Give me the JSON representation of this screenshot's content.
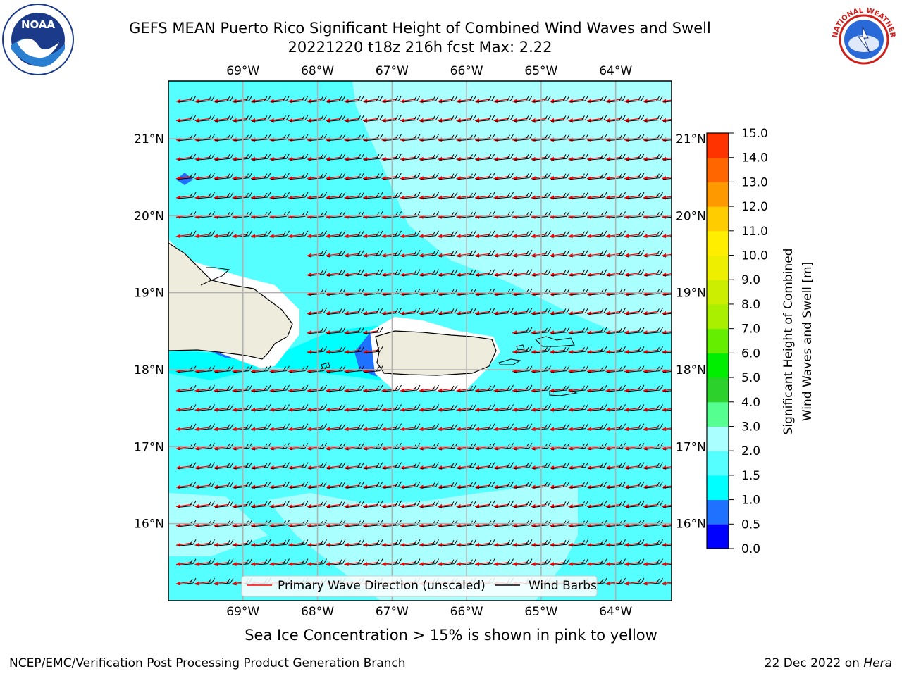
{
  "header": {
    "title_line1": "GEFS MEAN Puerto Rico Significant Height of Combined Wind Waves and Swell",
    "title_line2": "20221220 t18z 216h fcst   Max: 2.22"
  },
  "logos": {
    "left": "NOAA",
    "right": "NATIONAL WEATHER SERVICE"
  },
  "map": {
    "region": "Puerto Rico",
    "lon_labels": [
      "69°W",
      "68°W",
      "67°W",
      "66°W",
      "65°W",
      "64°W"
    ],
    "lat_labels": [
      "21°N",
      "20°N",
      "19°N",
      "18°N",
      "17°N",
      "16°N"
    ],
    "lon_ticks": [
      -69,
      -68,
      -67,
      -66,
      -65,
      -64
    ],
    "lat_ticks": [
      21,
      20,
      19,
      18,
      17,
      16
    ],
    "lon_range": [
      -70,
      -63.25
    ],
    "lat_range": [
      15.0,
      21.75
    ],
    "land_color": "#eeecdc",
    "wave_arrow_color": "#ff0000",
    "wind_barb_color": "#000000"
  },
  "legend": {
    "items": [
      {
        "label": "Primary Wave Direction (unscaled)",
        "color": "#ff0000"
      },
      {
        "label": "Wind Barbs",
        "color": "#000000"
      }
    ]
  },
  "colorbar": {
    "label_line1": "Significant Height of Combined",
    "label_line2": "Wind Waves and Swell [m]",
    "ticks": [
      "15.0",
      "14.0",
      "13.0",
      "12.0",
      "11.0",
      "10.0",
      "9.0",
      "8.0",
      "7.0",
      "6.0",
      "5.0",
      "4.0",
      "3.0",
      "2.0",
      "1.5",
      "1.0",
      "0.5",
      "0.0"
    ],
    "levels": [
      0.0,
      0.5,
      1.0,
      1.5,
      2.0,
      3.0,
      4.0,
      5.0,
      6.0,
      7.0,
      8.0,
      9.0,
      10.0,
      11.0,
      12.0,
      13.0,
      14.0,
      15.0
    ],
    "colors": [
      "#0000ff",
      "#1e72ff",
      "#00ffff",
      "#55ffff",
      "#aaffff",
      "#55ff90",
      "#2cd12c",
      "#00ee00",
      "#66ee00",
      "#aaee00",
      "#ccee00",
      "#eeee00",
      "#ffee00",
      "#ffcc00",
      "#ff9900",
      "#ff6600",
      "#ff3300",
      "#ff0000"
    ]
  },
  "footer": {
    "ice_note": "Sea Ice Concentration > 15% is shown in pink to yellow",
    "credit": "NCEP/EMC/Verification Post Processing Product Generation Branch",
    "date": "22 Dec 2022 on ",
    "host": "Hera"
  }
}
